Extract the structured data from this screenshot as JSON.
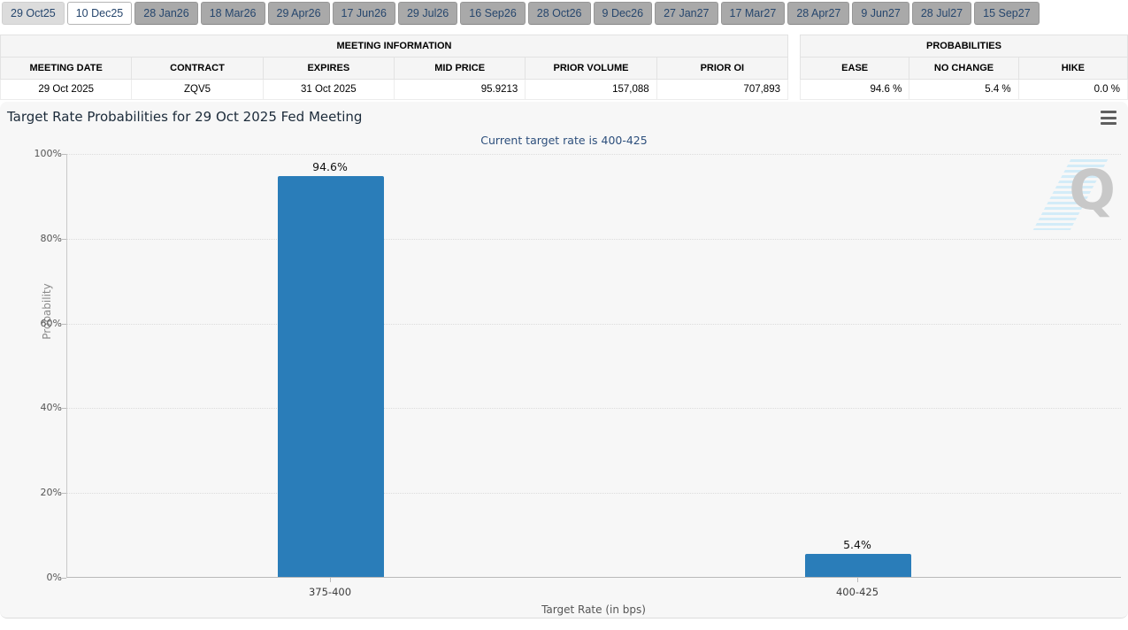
{
  "tabs": [
    {
      "label": "29 Oct25",
      "state": "current"
    },
    {
      "label": "10 Dec25",
      "state": "selected"
    },
    {
      "label": "28 Jan26",
      "state": "inactive"
    },
    {
      "label": "18 Mar26",
      "state": "inactive"
    },
    {
      "label": "29 Apr26",
      "state": "inactive"
    },
    {
      "label": "17 Jun26",
      "state": "inactive"
    },
    {
      "label": "29 Jul26",
      "state": "inactive"
    },
    {
      "label": "16 Sep26",
      "state": "inactive"
    },
    {
      "label": "28 Oct26",
      "state": "inactive"
    },
    {
      "label": "9 Dec26",
      "state": "inactive"
    },
    {
      "label": "27 Jan27",
      "state": "inactive"
    },
    {
      "label": "17 Mar27",
      "state": "inactive"
    },
    {
      "label": "28 Apr27",
      "state": "inactive"
    },
    {
      "label": "9 Jun27",
      "state": "inactive"
    },
    {
      "label": "28 Jul27",
      "state": "inactive"
    },
    {
      "label": "15 Sep27",
      "state": "inactive"
    }
  ],
  "meeting_info": {
    "title": "MEETING INFORMATION",
    "columns": [
      {
        "label": "MEETING DATE",
        "align": "c"
      },
      {
        "label": "CONTRACT",
        "align": "c"
      },
      {
        "label": "EXPIRES",
        "align": "c"
      },
      {
        "label": "MID PRICE",
        "align": "r"
      },
      {
        "label": "PRIOR VOLUME",
        "align": "r"
      },
      {
        "label": "PRIOR OI",
        "align": "r"
      }
    ],
    "row": [
      "29 Oct 2025",
      "ZQV5",
      "31 Oct 2025",
      "95.9213",
      "157,088",
      "707,893"
    ]
  },
  "probabilities": {
    "title": "PROBABILITIES",
    "columns": [
      {
        "label": "EASE",
        "align": "r"
      },
      {
        "label": "NO CHANGE",
        "align": "r"
      },
      {
        "label": "HIKE",
        "align": "r"
      }
    ],
    "row": [
      "94.6 %",
      "5.4 %",
      "0.0 %"
    ]
  },
  "watermark_letter": "Q",
  "chart_data": {
    "type": "bar",
    "title": "Target Rate Probabilities for 29 Oct 2025 Fed Meeting",
    "subtitle": "Current target rate is 400-425",
    "categories": [
      "375-400",
      "400-425"
    ],
    "values": [
      94.6,
      5.4
    ],
    "value_labels": [
      "94.6%",
      "5.4%"
    ],
    "xlabel": "Target Rate (in bps)",
    "ylabel": "Probability",
    "ylim": [
      0,
      100
    ],
    "ytick_labels": [
      "0%",
      "20%",
      "40%",
      "60%",
      "80%",
      "100%"
    ],
    "grid": "dotted horizontal",
    "legend": "none",
    "bar_color": "#2a7db9"
  }
}
